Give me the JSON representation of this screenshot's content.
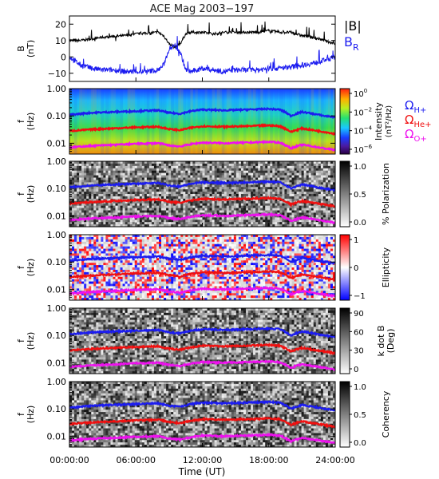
{
  "title": "ACE Mag 2003−197",
  "x_axis": {
    "label": "Time (UT)",
    "ticks": [
      "00:00:00",
      "06:00:00",
      "12:00:00",
      "18:00:00",
      "24:00:00"
    ],
    "tick_hours": [
      0,
      6,
      12,
      18,
      24
    ],
    "range_hours": [
      0,
      24
    ]
  },
  "colors": {
    "black": "#000000",
    "blue": "#1c1cf0",
    "red": "#f01010",
    "magenta": "#ee10ee"
  },
  "panels": {
    "b_field": {
      "ylabel_top": "B",
      "ylabel_bottom": "(nT)",
      "yticks": [
        "20",
        "10",
        "0",
        "−10"
      ],
      "ytick_values": [
        20,
        10,
        0,
        -10
      ],
      "ylim": [
        -15,
        25
      ],
      "legend_b": "|B|",
      "legend_br": "B",
      "legend_br_sub": "R"
    },
    "freq_yticks": [
      "1.00",
      "0.10",
      "0.01"
    ],
    "freq_ytick_values": [
      1.0,
      0.1,
      0.01
    ],
    "freq_ylabel_top": "f",
    "freq_ylabel_bottom": "(Hz)",
    "intensity": {
      "cbar_label": "Intensity",
      "cbar_unit": "(nT²/Hz)",
      "cbar_ticks": [
        {
          "base": "10",
          "exp": "0"
        },
        {
          "base": "10",
          "exp": "−2"
        },
        {
          "base": "10",
          "exp": "−4"
        },
        {
          "base": "10",
          "exp": "−6"
        }
      ],
      "legend": [
        {
          "symbol": "Ω",
          "sub": "H+"
        },
        {
          "symbol": "Ω",
          "sub": "He+"
        },
        {
          "symbol": "Ω",
          "sub": "O+"
        }
      ]
    },
    "polarization": {
      "cbar_label": "% Polarization",
      "cbar_ticks": [
        "1.0",
        "0.5",
        "0.0"
      ]
    },
    "ellipticity": {
      "cbar_label": "Ellipticity",
      "cbar_ticks": [
        "1",
        "0",
        "−1"
      ]
    },
    "kdotb": {
      "cbar_label_top": "k dot B",
      "cbar_label_bottom": "(Deg)",
      "cbar_ticks": [
        "90",
        "60",
        "30",
        "0"
      ]
    },
    "coherency": {
      "cbar_label": "Coherency",
      "cbar_ticks": [
        "1.0",
        "0.5",
        "0.0"
      ]
    }
  },
  "chart_data": [
    {
      "type": "line",
      "title": "ACE Mag 2003−197",
      "xlabel": "Time (UT)",
      "ylabel": "B (nT)",
      "ylim": [
        -15,
        25
      ],
      "series": [
        {
          "name": "|B|",
          "color": "#000000",
          "x": [
            0,
            1,
            2,
            3,
            4,
            5,
            6,
            7,
            8,
            8.5,
            9,
            9.5,
            10,
            10.5,
            11,
            12,
            13,
            14,
            15,
            16,
            17,
            18,
            19,
            20,
            21,
            22,
            23,
            24
          ],
          "y": [
            10,
            10,
            11,
            12,
            12.5,
            13,
            14,
            14.5,
            15,
            13,
            8,
            6,
            8,
            14,
            15,
            15,
            14,
            15,
            15,
            15,
            15,
            16,
            15,
            15,
            13,
            12,
            10,
            8
          ]
        },
        {
          "name": "B",
          "color": "#1c1cf0",
          "x": [
            0,
            1,
            2,
            3,
            4,
            5,
            6,
            7,
            8,
            8.5,
            9,
            9.5,
            10,
            10.5,
            11,
            12,
            13,
            14,
            15,
            16,
            17,
            18,
            19,
            20,
            21,
            22,
            23,
            24
          ],
          "y": [
            0,
            -5,
            -7,
            -8,
            -8,
            -9,
            -9,
            -9,
            -8,
            -5,
            5,
            7,
            3,
            -8,
            -9,
            -7,
            -8,
            -9,
            -8,
            -8,
            -8,
            -7,
            -7,
            -6,
            -5,
            -4,
            -2,
            0
          ]
        }
      ]
    },
    {
      "type": "line",
      "title": "",
      "ylabel": "f (Hz)",
      "yscale": "log",
      "ylim": [
        0.004,
        1.0
      ],
      "x": [
        0,
        2,
        4,
        6,
        8,
        9,
        10,
        11,
        12,
        14,
        16,
        18,
        19,
        20,
        21,
        22,
        23,
        24
      ],
      "series": [
        {
          "name": "Ω H+",
          "color": "#1c1cf0",
          "y": [
            0.11,
            0.13,
            0.14,
            0.15,
            0.16,
            0.13,
            0.12,
            0.15,
            0.17,
            0.16,
            0.17,
            0.18,
            0.17,
            0.1,
            0.14,
            0.12,
            0.1,
            0.09
          ]
        },
        {
          "name": "Ω He+",
          "color": "#f01010",
          "y": [
            0.028,
            0.032,
            0.035,
            0.038,
            0.04,
            0.033,
            0.03,
            0.037,
            0.042,
            0.04,
            0.042,
            0.045,
            0.042,
            0.026,
            0.035,
            0.03,
            0.026,
            0.022
          ]
        },
        {
          "name": "Ω O+",
          "color": "#ee10ee",
          "y": [
            0.007,
            0.008,
            0.0087,
            0.0095,
            0.01,
            0.0083,
            0.0076,
            0.0093,
            0.0105,
            0.01,
            0.0105,
            0.0112,
            0.0105,
            0.0065,
            0.0088,
            0.0076,
            0.0065,
            0.0056
          ]
        }
      ]
    }
  ]
}
